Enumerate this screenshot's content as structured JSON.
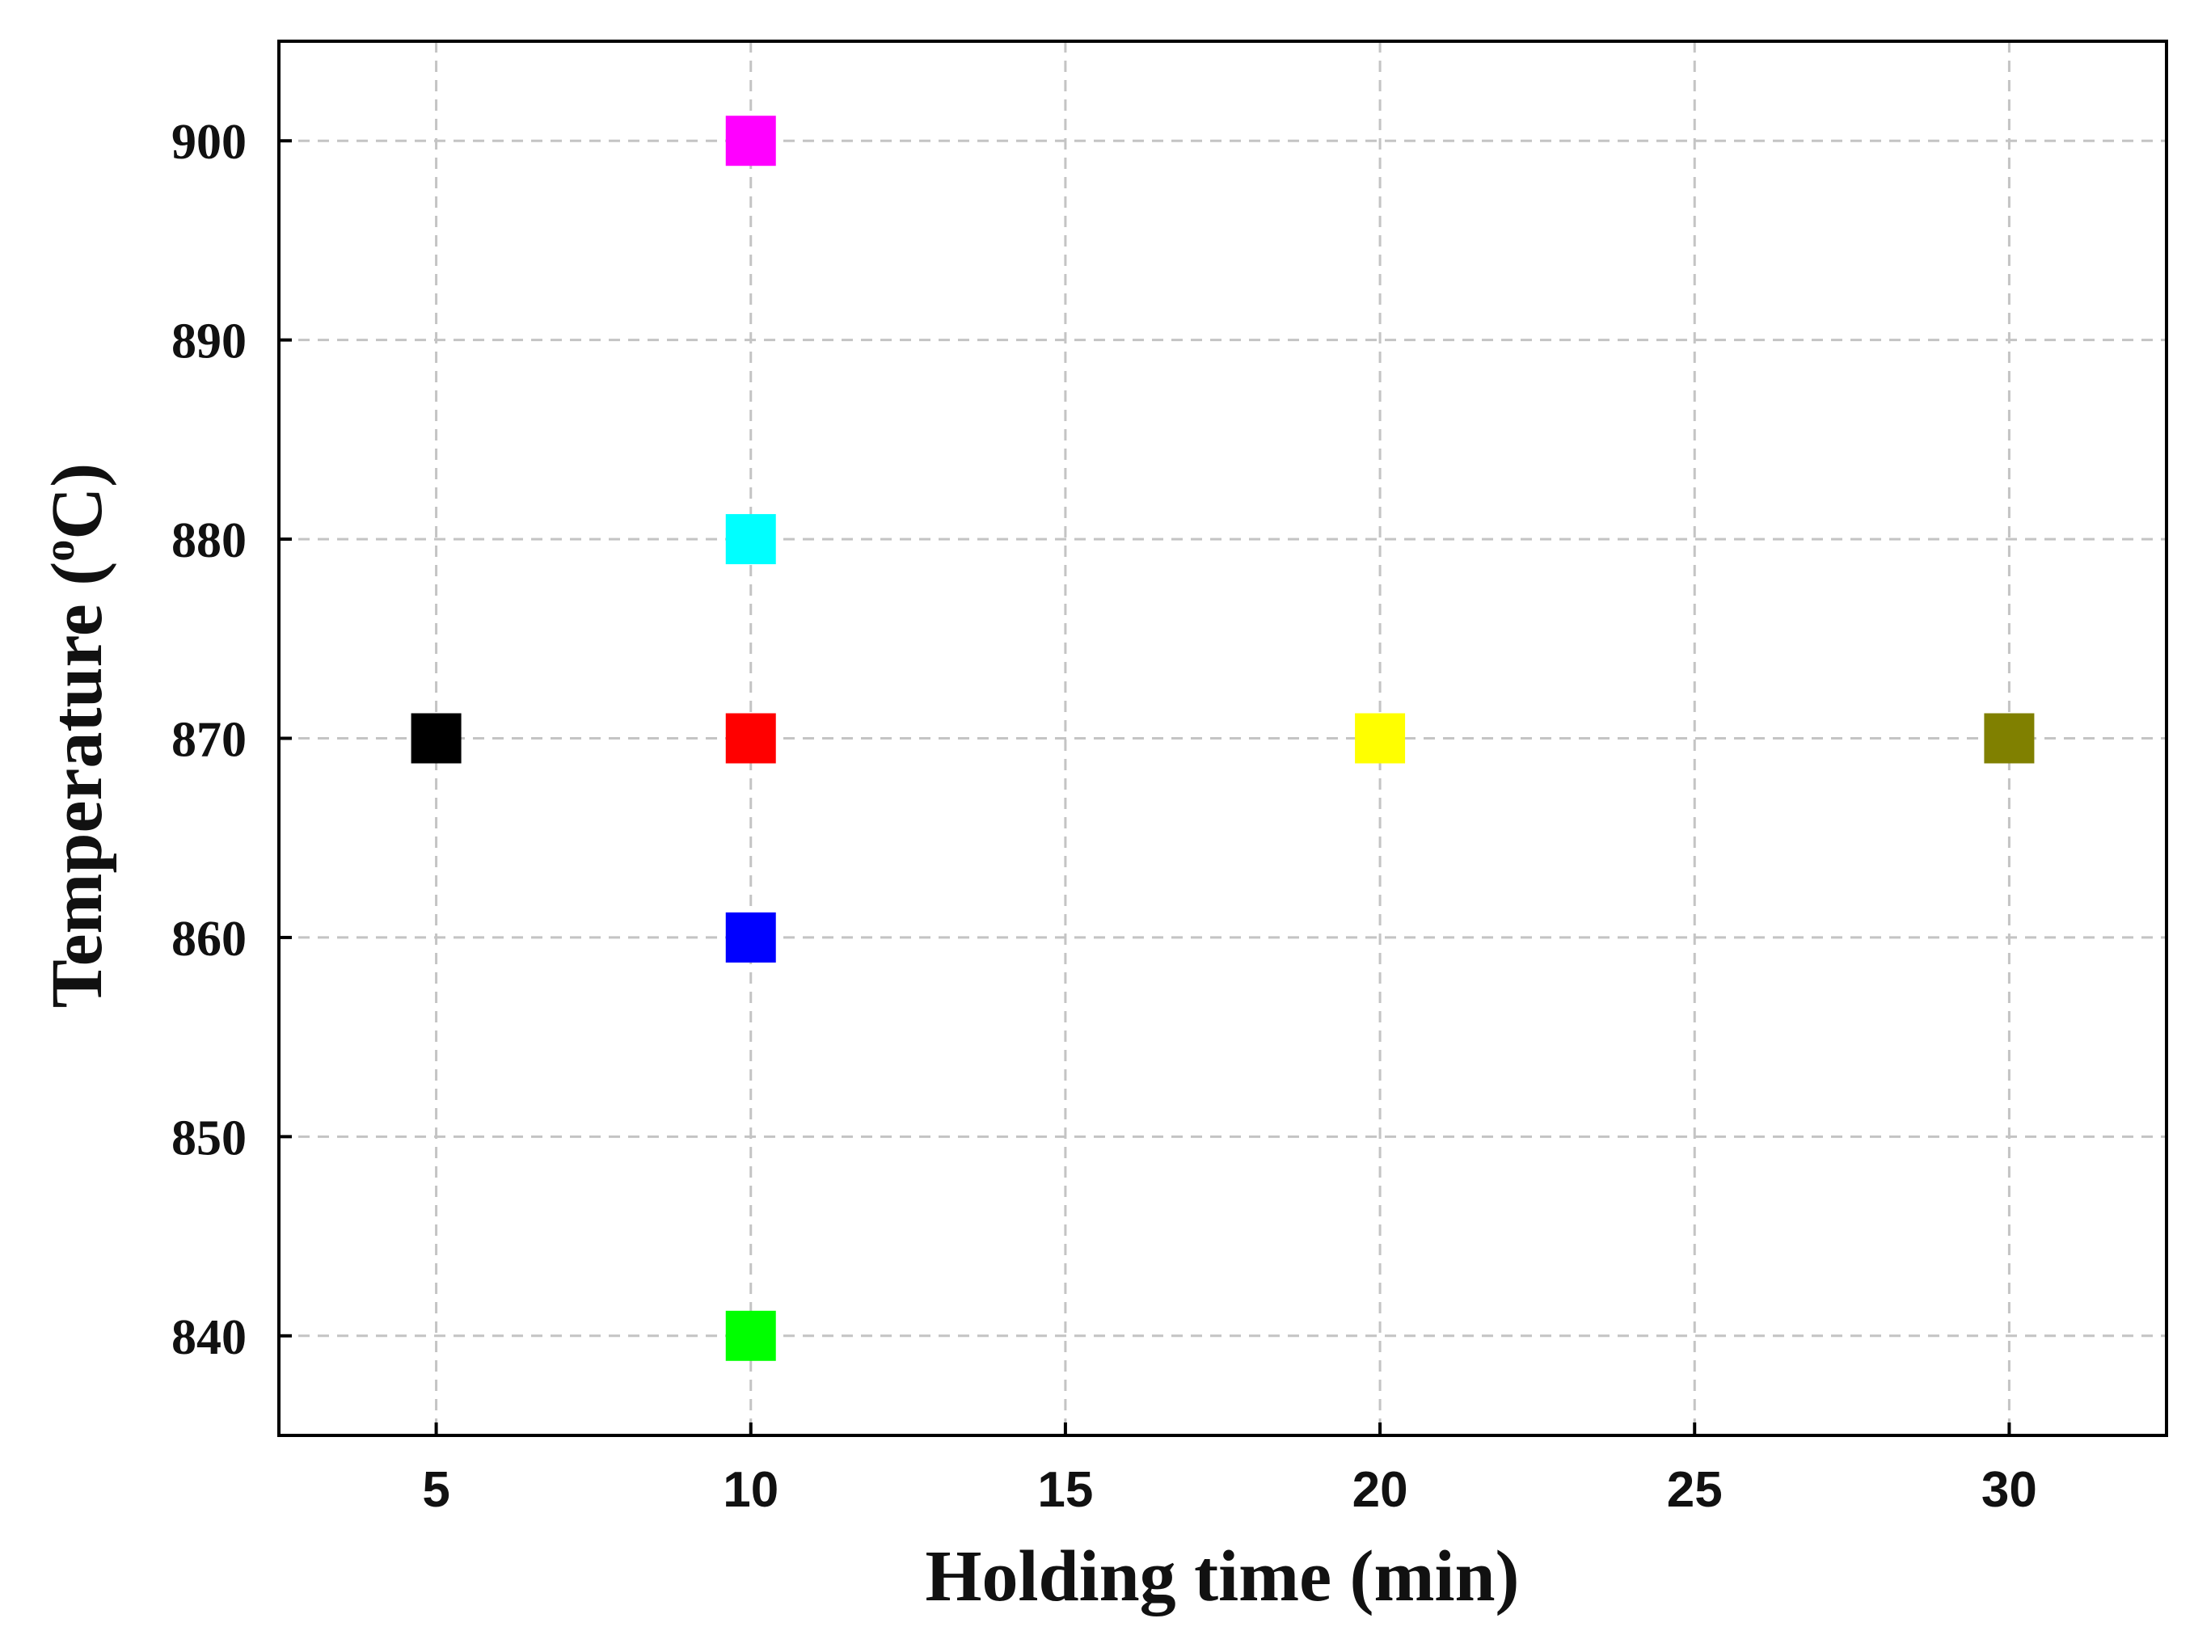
{
  "chart_data": {
    "type": "scatter",
    "title": "",
    "xlabel": "Holding time (min)",
    "ylabel_main": "Temperature (",
    "ylabel_sup": "o",
    "ylabel_end": "C)",
    "xlim": [
      2.5,
      32.5
    ],
    "ylim": [
      835,
      905
    ],
    "xticks": [
      5,
      10,
      15,
      20,
      25,
      30
    ],
    "yticks": [
      840,
      850,
      860,
      870,
      880,
      890,
      900
    ],
    "grid": true,
    "legend": "none",
    "marker": "square",
    "points": [
      {
        "x": 5,
        "y": 870,
        "color": "#000000"
      },
      {
        "x": 10,
        "y": 900,
        "color": "#ff00ff"
      },
      {
        "x": 10,
        "y": 880,
        "color": "#00ffff"
      },
      {
        "x": 10,
        "y": 870,
        "color": "#ff0000"
      },
      {
        "x": 10,
        "y": 860,
        "color": "#0000ff"
      },
      {
        "x": 10,
        "y": 840,
        "color": "#00ff00"
      },
      {
        "x": 20,
        "y": 870,
        "color": "#ffff00"
      },
      {
        "x": 30,
        "y": 870,
        "color": "#808000"
      }
    ]
  }
}
